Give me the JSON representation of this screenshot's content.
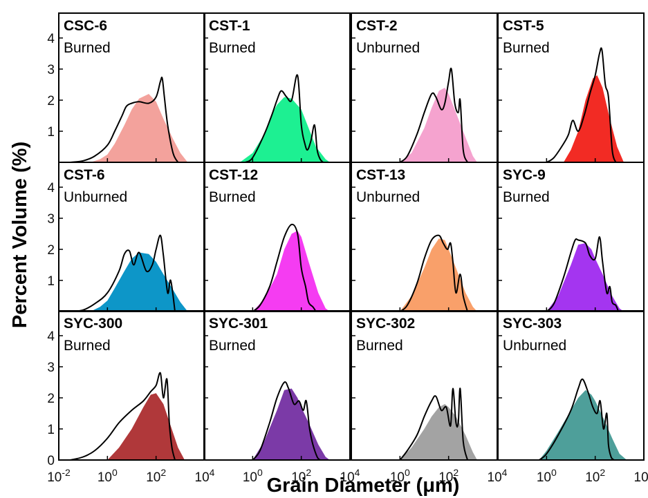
{
  "figure": {
    "ylabel": "Percent Volume (%)",
    "xlabel": "Grain Diameter (μm)",
    "x_ticks": [
      {
        "label": "10",
        "sup": "-2"
      },
      {
        "label": "10",
        "sup": "0"
      },
      {
        "label": "10",
        "sup": "2"
      },
      {
        "label": "10",
        "sup": "4"
      }
    ],
    "y_ticks": [
      "1",
      "2",
      "3",
      "4"
    ],
    "y_zero": "0"
  },
  "chart_data": [
    {
      "type": "area",
      "sample": "CSC-6",
      "status": "Burned",
      "color": "#f3a29c",
      "x_scale": "log10",
      "xlim": [
        0.01,
        10000
      ],
      "ylim": [
        0,
        4
      ],
      "ylabel": "Percent Volume (%)",
      "xlabel": "Grain Diameter (μm)",
      "fill_series": {
        "x": [
          0.2,
          0.5,
          1,
          2,
          5,
          10,
          20,
          50,
          100,
          200,
          500,
          1000,
          2000
        ],
        "y": [
          0,
          0.1,
          0.25,
          0.6,
          1.2,
          1.7,
          2.05,
          2.2,
          1.95,
          1.4,
          0.75,
          0.3,
          0
        ]
      },
      "line_series": {
        "x": [
          0.03,
          0.1,
          0.3,
          1,
          2,
          4,
          6,
          10,
          20,
          50,
          100,
          150,
          180,
          220,
          300,
          500,
          800
        ],
        "y": [
          0,
          0.05,
          0.2,
          0.55,
          1.0,
          1.5,
          1.8,
          1.9,
          1.95,
          1.9,
          2.1,
          2.6,
          2.7,
          2.1,
          1.2,
          0.3,
          0
        ]
      }
    },
    {
      "type": "area",
      "sample": "CST-1",
      "status": "Burned",
      "color": "#1df092",
      "x_scale": "log10",
      "xlim": [
        0.01,
        10000
      ],
      "ylim": [
        0,
        4
      ],
      "fill_series": {
        "x": [
          0.3,
          1,
          3,
          5,
          10,
          20,
          40,
          100,
          200,
          400,
          1000,
          1500
        ],
        "y": [
          0,
          0.3,
          0.9,
          1.4,
          1.85,
          2.1,
          2.05,
          1.7,
          1.1,
          0.5,
          0.1,
          0
        ]
      },
      "line_series": {
        "x": [
          0.5,
          1,
          3,
          6,
          10,
          15,
          25,
          40,
          70,
          100,
          140,
          180,
          250,
          350,
          450,
          600,
          800
        ],
        "y": [
          0,
          0.15,
          0.9,
          1.5,
          2.0,
          2.3,
          2.1,
          2.0,
          2.8,
          1.2,
          0.6,
          0.4,
          0.7,
          1.2,
          0.4,
          0.1,
          0
        ]
      }
    },
    {
      "type": "area",
      "sample": "CST-2",
      "status": "Unburned",
      "color": "#f5a3cf",
      "x_scale": "log10",
      "xlim": [
        0.01,
        10000
      ],
      "ylim": [
        0,
        4
      ],
      "fill_series": {
        "x": [
          1,
          3,
          10,
          20,
          40,
          70,
          100,
          200,
          500,
          1000,
          1500
        ],
        "y": [
          0,
          0.3,
          1.1,
          1.75,
          2.3,
          2.4,
          2.2,
          1.6,
          0.8,
          0.2,
          0
        ]
      },
      "line_series": {
        "x": [
          1,
          2,
          5,
          10,
          20,
          30,
          50,
          70,
          100,
          130,
          180,
          250,
          300,
          400,
          600
        ],
        "y": [
          0,
          0.2,
          0.9,
          1.6,
          2.2,
          2.1,
          1.7,
          1.9,
          2.6,
          3.0,
          1.9,
          1.6,
          2.0,
          0.4,
          0
        ]
      }
    },
    {
      "type": "area",
      "sample": "CST-5",
      "status": "Burned",
      "color": "#f22b24",
      "x_scale": "log10",
      "xlim": [
        0.01,
        10000
      ],
      "ylim": [
        0,
        4
      ],
      "fill_series": {
        "x": [
          5,
          10,
          20,
          40,
          80,
          120,
          200,
          400,
          800,
          1500
        ],
        "y": [
          0,
          0.4,
          1.0,
          2.0,
          2.7,
          2.8,
          2.4,
          1.4,
          0.5,
          0
        ]
      },
      "line_series": {
        "x": [
          1,
          2,
          5,
          8,
          12,
          20,
          35,
          60,
          100,
          150,
          190,
          260,
          350,
          500,
          700
        ],
        "y": [
          0,
          0.15,
          0.6,
          0.9,
          1.35,
          1.0,
          1.5,
          2.2,
          2.8,
          3.5,
          3.6,
          2.5,
          2.1,
          0.4,
          0
        ]
      }
    },
    {
      "type": "area",
      "sample": "CST-6",
      "status": "Unburned",
      "color": "#0d96c8",
      "x_scale": "log10",
      "xlim": [
        0.01,
        10000
      ],
      "ylim": [
        0,
        4
      ],
      "fill_series": {
        "x": [
          0.2,
          0.5,
          1,
          2,
          5,
          10,
          20,
          50,
          100,
          200,
          500,
          1000,
          2000
        ],
        "y": [
          0,
          0.15,
          0.35,
          0.75,
          1.3,
          1.7,
          1.9,
          1.85,
          1.6,
          1.2,
          0.7,
          0.3,
          0
        ]
      },
      "line_series": {
        "x": [
          0.03,
          0.1,
          0.3,
          1,
          3,
          5,
          8,
          12,
          20,
          40,
          70,
          100,
          150,
          200,
          300,
          400,
          600
        ],
        "y": [
          0,
          0.05,
          0.25,
          0.6,
          1.3,
          1.85,
          1.95,
          1.5,
          1.9,
          1.3,
          1.5,
          2.0,
          2.45,
          1.8,
          0.6,
          1.0,
          0
        ]
      }
    },
    {
      "type": "area",
      "sample": "CST-12",
      "status": "Burned",
      "color": "#f53cf2",
      "x_scale": "log10",
      "xlim": [
        0.01,
        10000
      ],
      "ylim": [
        0,
        4
      ],
      "fill_series": {
        "x": [
          1,
          3,
          10,
          20,
          40,
          70,
          100,
          200,
          500,
          1000,
          1500
        ],
        "y": [
          0,
          0.4,
          1.2,
          2.0,
          2.5,
          2.6,
          2.4,
          1.6,
          0.6,
          0.1,
          0
        ]
      },
      "line_series": {
        "x": [
          1,
          2,
          5,
          10,
          20,
          40,
          70,
          100,
          150,
          200,
          300,
          400
        ],
        "y": [
          0,
          0.2,
          0.8,
          1.6,
          2.4,
          2.8,
          2.5,
          1.4,
          0.8,
          0.3,
          0.15,
          0
        ]
      }
    },
    {
      "type": "area",
      "sample": "CST-13",
      "status": "Unburned",
      "color": "#f9a06a",
      "x_scale": "log10",
      "xlim": [
        0.01,
        10000
      ],
      "ylim": [
        0,
        4
      ],
      "fill_series": {
        "x": [
          1,
          3,
          10,
          20,
          40,
          70,
          100,
          200,
          500,
          1000,
          1500
        ],
        "y": [
          0,
          0.5,
          1.4,
          2.0,
          2.35,
          2.3,
          2.0,
          1.4,
          0.6,
          0.15,
          0
        ]
      },
      "line_series": {
        "x": [
          1,
          2,
          5,
          10,
          20,
          40,
          60,
          90,
          120,
          150,
          200,
          300,
          400,
          600
        ],
        "y": [
          0,
          0.2,
          0.9,
          1.7,
          2.3,
          2.45,
          2.2,
          2.0,
          2.2,
          1.6,
          0.6,
          1.2,
          0.5,
          0
        ]
      }
    },
    {
      "type": "area",
      "sample": "SYC-9",
      "status": "Burned",
      "color": "#a435f0",
      "x_scale": "log10",
      "xlim": [
        0.01,
        10000
      ],
      "ylim": [
        0,
        4
      ],
      "fill_series": {
        "x": [
          1,
          3,
          10,
          20,
          40,
          70,
          100,
          200,
          500,
          1000,
          1500
        ],
        "y": [
          0,
          0.5,
          1.5,
          2.15,
          2.2,
          2.0,
          1.7,
          1.2,
          0.5,
          0.1,
          0
        ]
      },
      "line_series": {
        "x": [
          1,
          2,
          5,
          10,
          15,
          20,
          40,
          60,
          100,
          150,
          200,
          300,
          400,
          500,
          700,
          900
        ],
        "y": [
          0,
          0.25,
          1.1,
          1.9,
          2.3,
          2.3,
          2.2,
          1.8,
          1.7,
          2.4,
          1.6,
          0.6,
          0.8,
          0.3,
          0.2,
          0
        ]
      }
    },
    {
      "type": "area",
      "sample": "SYC-300",
      "status": "Burned",
      "color": "#b0383a",
      "x_scale": "log10",
      "xlim": [
        0.01,
        10000
      ],
      "ylim": [
        0,
        4
      ],
      "fill_series": {
        "x": [
          1,
          3,
          10,
          30,
          60,
          100,
          200,
          400,
          800,
          1500
        ],
        "y": [
          0,
          0.4,
          1.0,
          1.7,
          2.1,
          2.15,
          1.8,
          1.1,
          0.4,
          0
        ]
      },
      "line_series": {
        "x": [
          0.03,
          0.1,
          0.3,
          1,
          3,
          10,
          30,
          60,
          100,
          150,
          200,
          280,
          350,
          450,
          600
        ],
        "y": [
          0,
          0.1,
          0.3,
          0.7,
          1.2,
          1.6,
          1.9,
          2.2,
          2.4,
          2.8,
          2.0,
          2.6,
          1.2,
          0.4,
          0
        ]
      }
    },
    {
      "type": "area",
      "sample": "SYC-301",
      "status": "Burned",
      "color": "#7b3aa7",
      "x_scale": "log10",
      "xlim": [
        0.01,
        10000
      ],
      "ylim": [
        0,
        4
      ],
      "fill_series": {
        "x": [
          1,
          3,
          10,
          20,
          40,
          70,
          100,
          200,
          500,
          1000,
          1500
        ],
        "y": [
          0,
          0.6,
          1.6,
          2.25,
          2.3,
          2.0,
          1.7,
          1.2,
          0.5,
          0.1,
          0
        ]
      },
      "line_series": {
        "x": [
          1,
          2,
          5,
          10,
          20,
          30,
          50,
          80,
          120,
          160,
          220,
          300,
          450,
          600
        ],
        "y": [
          0,
          0.3,
          1.2,
          2.0,
          2.5,
          2.3,
          1.8,
          1.9,
          1.6,
          1.9,
          1.0,
          0.5,
          0.1,
          0
        ]
      }
    },
    {
      "type": "area",
      "sample": "SYC-302",
      "status": "Burned",
      "color": "#a3a3a3",
      "x_scale": "log10",
      "xlim": [
        0.01,
        10000
      ],
      "ylim": [
        0,
        4
      ],
      "fill_series": {
        "x": [
          1,
          3,
          10,
          20,
          40,
          70,
          100,
          200,
          500,
          1000,
          1500
        ],
        "y": [
          0,
          0.4,
          1.0,
          1.4,
          1.7,
          1.8,
          1.7,
          1.4,
          0.8,
          0.25,
          0
        ]
      },
      "line_series": {
        "x": [
          1,
          2,
          5,
          10,
          20,
          30,
          50,
          80,
          120,
          150,
          200,
          250,
          300,
          400,
          600
        ],
        "y": [
          0,
          0.3,
          0.8,
          1.4,
          1.9,
          2.05,
          1.6,
          1.7,
          1.1,
          2.3,
          1.2,
          1.2,
          2.3,
          0.6,
          0
        ]
      }
    },
    {
      "type": "area",
      "sample": "SYC-303",
      "status": "Unburned",
      "color": "#4e9f9a",
      "x_scale": "log10",
      "xlim": [
        0.01,
        10000
      ],
      "ylim": [
        0,
        4
      ],
      "fill_series": {
        "x": [
          0.5,
          1,
          3,
          10,
          20,
          40,
          70,
          100,
          200,
          500,
          1000,
          2000
        ],
        "y": [
          0,
          0.3,
          0.9,
          1.6,
          2.0,
          2.25,
          2.1,
          1.9,
          1.4,
          0.7,
          0.2,
          0
        ]
      },
      "line_series": {
        "x": [
          0.5,
          1,
          3,
          10,
          20,
          30,
          50,
          80,
          120,
          160,
          220,
          300,
          350,
          450,
          600
        ],
        "y": [
          0,
          0.2,
          0.8,
          1.6,
          2.3,
          2.6,
          2.2,
          1.7,
          1.5,
          1.9,
          1.0,
          1.5,
          0.5,
          0.1,
          0
        ]
      }
    }
  ]
}
